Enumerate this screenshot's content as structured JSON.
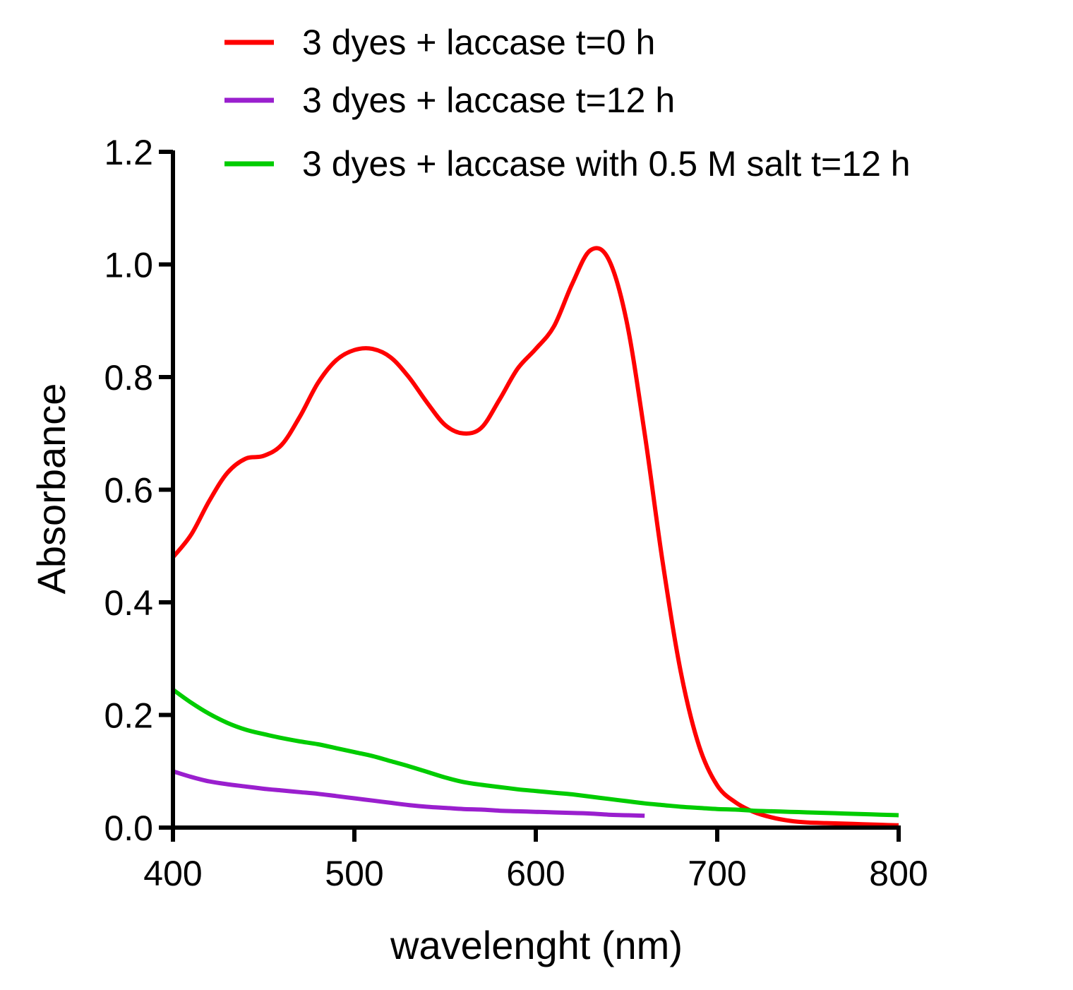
{
  "chart_data": {
    "type": "line",
    "title": "",
    "xlabel": "wavelenght (nm)",
    "ylabel": "Absorbance",
    "xlim": [
      400,
      800
    ],
    "ylim": [
      0.0,
      1.2
    ],
    "xticks": [
      400,
      500,
      600,
      700,
      800
    ],
    "xtick_labels": [
      "400",
      "500",
      "600",
      "700",
      "800"
    ],
    "yticks": [
      0.0,
      0.2,
      0.4,
      0.6,
      0.8,
      1.0,
      1.2
    ],
    "ytick_labels": [
      "0.0",
      "0.2",
      "0.4",
      "0.6",
      "0.8",
      "1.0",
      "1.2"
    ],
    "grid": false,
    "legend_position": "top",
    "series": [
      {
        "name": "3 dyes + laccase t=0 h",
        "color": "#ff0000",
        "points": [
          [
            400,
            0.48
          ],
          [
            410,
            0.52
          ],
          [
            420,
            0.58
          ],
          [
            430,
            0.63
          ],
          [
            440,
            0.655
          ],
          [
            450,
            0.66
          ],
          [
            460,
            0.68
          ],
          [
            470,
            0.73
          ],
          [
            480,
            0.79
          ],
          [
            490,
            0.83
          ],
          [
            500,
            0.848
          ],
          [
            510,
            0.85
          ],
          [
            520,
            0.835
          ],
          [
            530,
            0.8
          ],
          [
            540,
            0.755
          ],
          [
            550,
            0.715
          ],
          [
            560,
            0.7
          ],
          [
            570,
            0.71
          ],
          [
            580,
            0.76
          ],
          [
            590,
            0.815
          ],
          [
            600,
            0.85
          ],
          [
            610,
            0.89
          ],
          [
            620,
            0.965
          ],
          [
            630,
            1.025
          ],
          [
            640,
            1.01
          ],
          [
            650,
            0.9
          ],
          [
            660,
            0.7
          ],
          [
            670,
            0.47
          ],
          [
            680,
            0.275
          ],
          [
            690,
            0.145
          ],
          [
            700,
            0.075
          ],
          [
            710,
            0.045
          ],
          [
            720,
            0.028
          ],
          [
            730,
            0.018
          ],
          [
            740,
            0.012
          ],
          [
            750,
            0.009
          ],
          [
            760,
            0.008
          ],
          [
            770,
            0.007
          ],
          [
            780,
            0.006
          ],
          [
            790,
            0.005
          ],
          [
            800,
            0.004
          ]
        ]
      },
      {
        "name": "3 dyes + laccase t=12 h",
        "color": "#9a1fce",
        "points": [
          [
            400,
            0.1
          ],
          [
            410,
            0.09
          ],
          [
            420,
            0.082
          ],
          [
            430,
            0.077
          ],
          [
            440,
            0.073
          ],
          [
            450,
            0.069
          ],
          [
            460,
            0.066
          ],
          [
            470,
            0.063
          ],
          [
            480,
            0.06
          ],
          [
            490,
            0.056
          ],
          [
            500,
            0.052
          ],
          [
            510,
            0.048
          ],
          [
            520,
            0.044
          ],
          [
            530,
            0.04
          ],
          [
            540,
            0.037
          ],
          [
            550,
            0.035
          ],
          [
            560,
            0.033
          ],
          [
            570,
            0.032
          ],
          [
            580,
            0.03
          ],
          [
            590,
            0.029
          ],
          [
            600,
            0.028
          ],
          [
            610,
            0.027
          ],
          [
            620,
            0.026
          ],
          [
            630,
            0.025
          ],
          [
            640,
            0.023
          ],
          [
            650,
            0.022
          ],
          [
            660,
            0.021
          ]
        ]
      },
      {
        "name": "3 dyes + laccase with 0.5 M salt t=12 h",
        "color": "#00cc00",
        "points": [
          [
            400,
            0.245
          ],
          [
            410,
            0.222
          ],
          [
            420,
            0.202
          ],
          [
            430,
            0.186
          ],
          [
            440,
            0.174
          ],
          [
            450,
            0.166
          ],
          [
            460,
            0.159
          ],
          [
            470,
            0.153
          ],
          [
            480,
            0.148
          ],
          [
            490,
            0.141
          ],
          [
            500,
            0.134
          ],
          [
            510,
            0.127
          ],
          [
            520,
            0.118
          ],
          [
            530,
            0.109
          ],
          [
            540,
            0.099
          ],
          [
            550,
            0.089
          ],
          [
            560,
            0.081
          ],
          [
            570,
            0.076
          ],
          [
            580,
            0.072
          ],
          [
            590,
            0.068
          ],
          [
            600,
            0.065
          ],
          [
            610,
            0.062
          ],
          [
            620,
            0.059
          ],
          [
            630,
            0.055
          ],
          [
            640,
            0.051
          ],
          [
            650,
            0.047
          ],
          [
            660,
            0.043
          ],
          [
            670,
            0.04
          ],
          [
            680,
            0.037
          ],
          [
            690,
            0.035
          ],
          [
            700,
            0.033
          ],
          [
            710,
            0.032
          ],
          [
            720,
            0.03
          ],
          [
            730,
            0.029
          ],
          [
            740,
            0.028
          ],
          [
            750,
            0.027
          ],
          [
            760,
            0.026
          ],
          [
            770,
            0.025
          ],
          [
            780,
            0.024
          ],
          [
            790,
            0.023
          ],
          [
            800,
            0.022
          ]
        ]
      }
    ]
  }
}
